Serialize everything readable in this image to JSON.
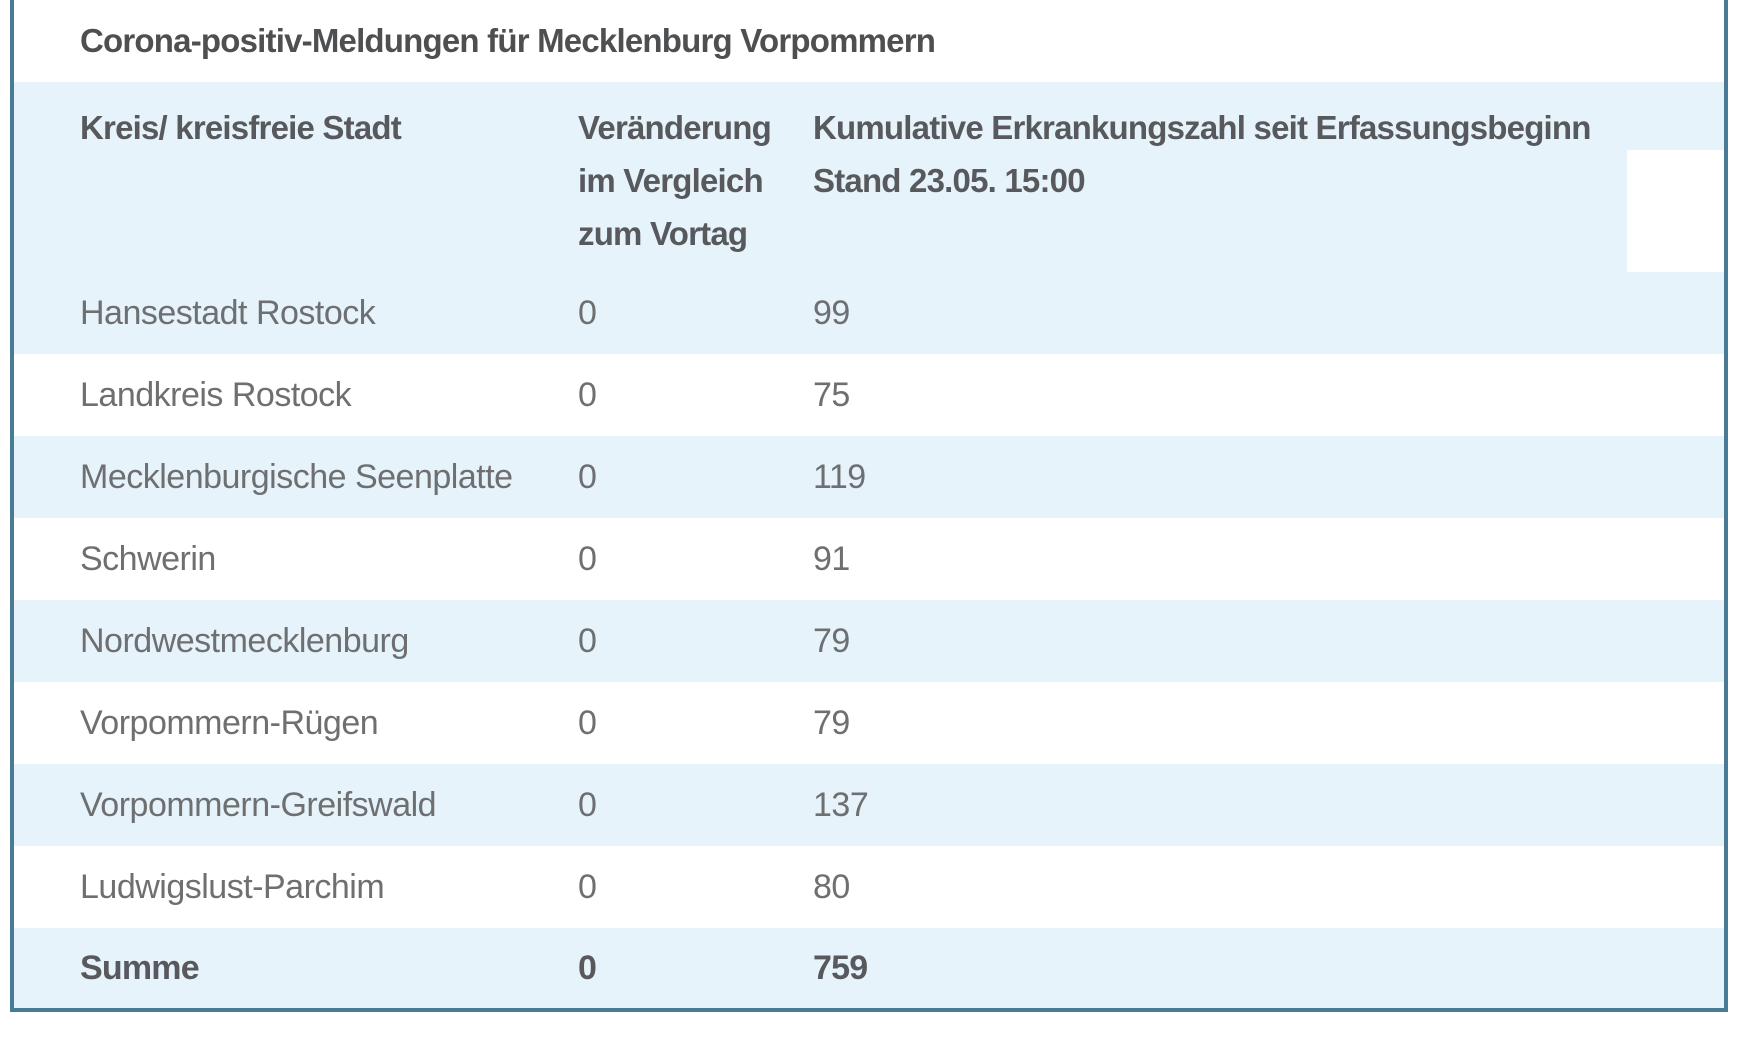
{
  "chart_data": {
    "type": "table",
    "title": "Corona-positiv-Meldungen für Mecklenburg Vorpommern",
    "header": {
      "col1_lines": [
        "Kreis/ kreisfreie Stadt"
      ],
      "col2_lines": [
        "Veränderung",
        "im Vergleich",
        "zum Vortag"
      ],
      "col3_lines": [
        "Kumulative Erkrankungszahl seit Erfassungsbeginn",
        "Stand 23.05. 15:00"
      ]
    },
    "columns": [
      "Kreis/ kreisfreie Stadt",
      "Veränderung im Vergleich zum Vortag",
      "Kumulative Erkrankungszahl seit Erfassungsbeginn Stand 23.05. 15:00"
    ],
    "rows": [
      {
        "district": "Hansestadt Rostock",
        "change": "0",
        "cumulative": "99"
      },
      {
        "district": "Landkreis Rostock",
        "change": "0",
        "cumulative": "75"
      },
      {
        "district": "Mecklenburgische Seenplatte",
        "change": "0",
        "cumulative": "119"
      },
      {
        "district": "Schwerin",
        "change": "0",
        "cumulative": "91"
      },
      {
        "district": "Nordwestmecklenburg",
        "change": "0",
        "cumulative": "79"
      },
      {
        "district": "Vorpommern-Rügen",
        "change": "0",
        "cumulative": "79"
      },
      {
        "district": "Vorpommern-Greifswald",
        "change": "0",
        "cumulative": "137"
      },
      {
        "district": "Ludwigslust-Parchim",
        "change": "0",
        "cumulative": "80"
      }
    ],
    "total_row": {
      "district": "Summe",
      "change": "0",
      "cumulative": "759"
    }
  },
  "colors": {
    "table_border": "#497a96",
    "row_highlight": "#e6f3fb",
    "text_heading": "#58595c",
    "text_body": "#6e6f71"
  }
}
